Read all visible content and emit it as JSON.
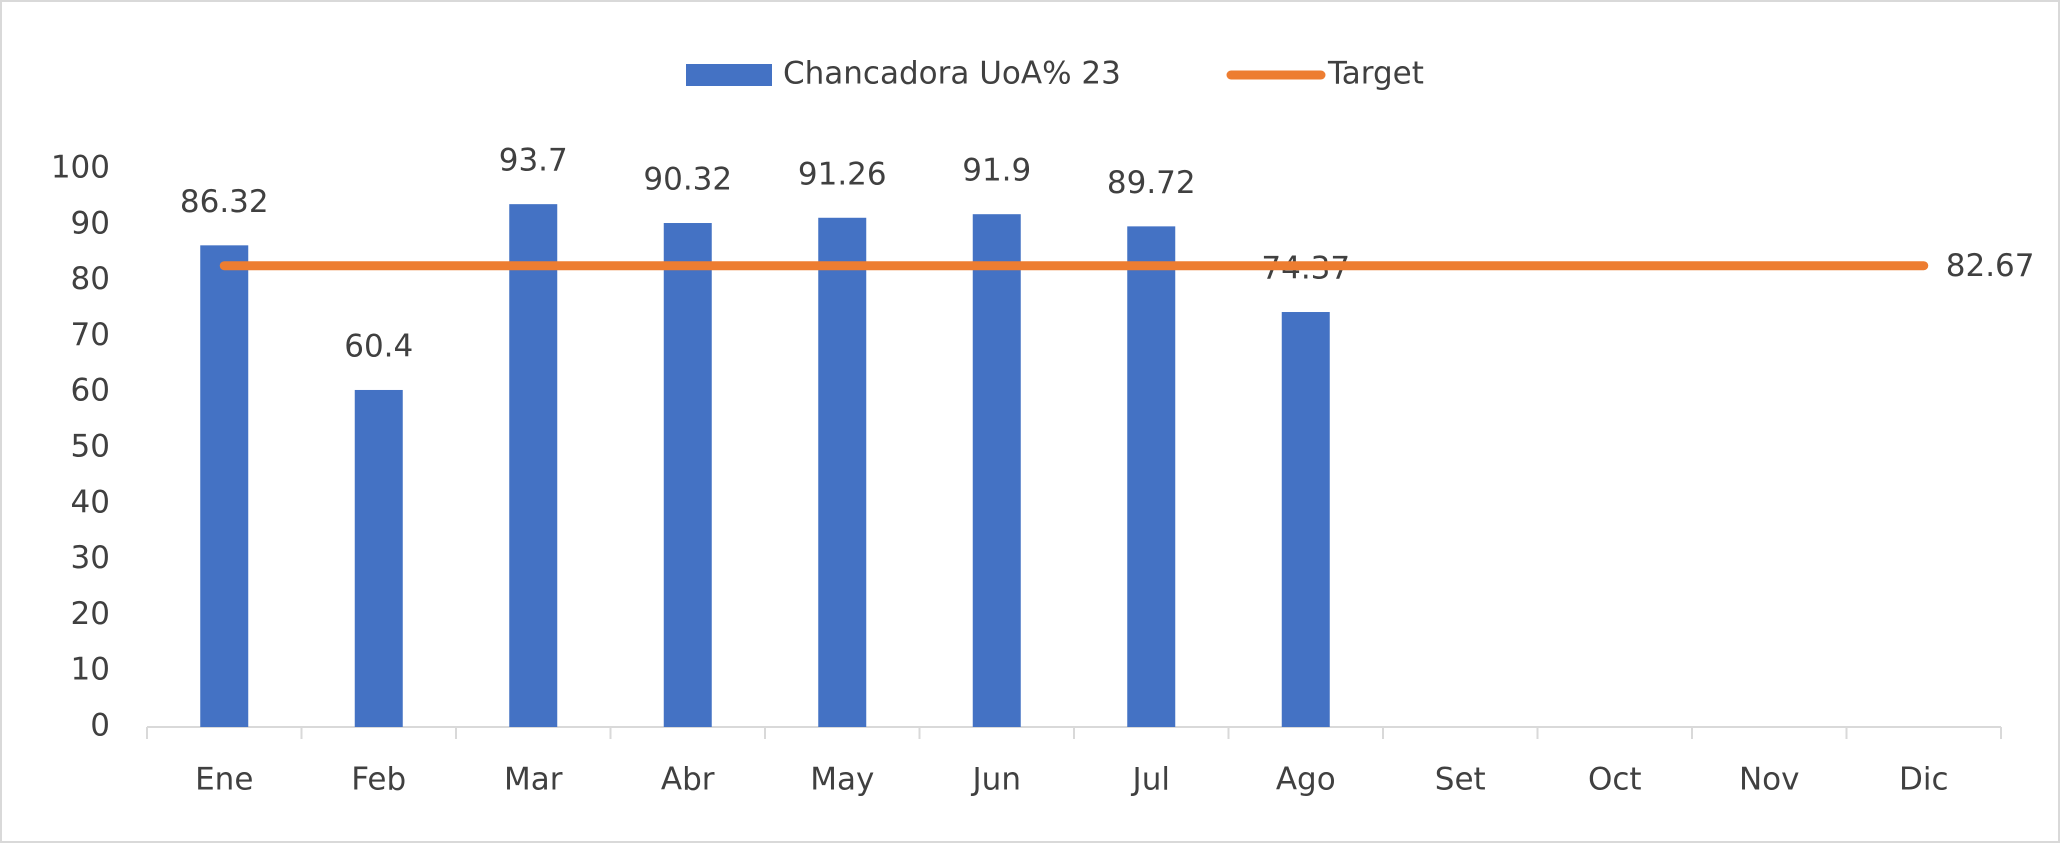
{
  "chart_data": {
    "type": "bar",
    "categories": [
      "Ene",
      "Feb",
      "Mar",
      "Abr",
      "May",
      "Jun",
      "Jul",
      "Ago",
      "Set",
      "Oct",
      "Nov",
      "Dic"
    ],
    "series": [
      {
        "name": "Chancadora UoA% 23",
        "type": "bar",
        "color": "#4472c4",
        "values": [
          86.32,
          60.4,
          93.7,
          90.32,
          91.26,
          91.9,
          89.72,
          74.37,
          null,
          null,
          null,
          null
        ]
      },
      {
        "name": "Target",
        "type": "line",
        "color": "#ed7d31",
        "values": [
          82.67,
          82.67,
          82.67,
          82.67,
          82.67,
          82.67,
          82.67,
          82.67,
          82.67,
          82.67,
          82.67,
          82.67
        ]
      }
    ],
    "ylim": [
      0,
      100
    ],
    "yticks": [
      0,
      10,
      20,
      30,
      40,
      50,
      60,
      70,
      80,
      90,
      100
    ],
    "grid": false,
    "legend": "top"
  }
}
